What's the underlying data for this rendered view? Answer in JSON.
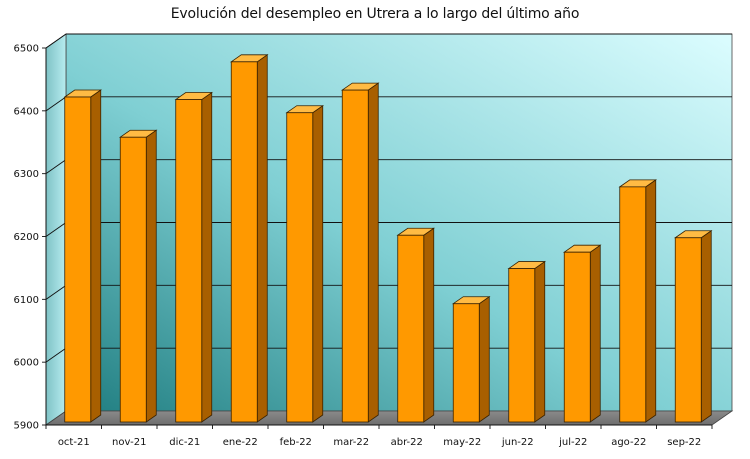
{
  "chart_data": {
    "type": "bar",
    "title": "Evolución del desempleo en Utrera a lo largo del último año",
    "xlabel": "",
    "ylabel": "",
    "categories": [
      "oct-21",
      "nov-21",
      "dic-21",
      "ene-22",
      "feb-22",
      "mar-22",
      "abr-22",
      "may-22",
      "jun-22",
      "jul-22",
      "ago-22",
      "sep-22"
    ],
    "values": [
      6422,
      6358,
      6418,
      6478,
      6397,
      6433,
      6202,
      6093,
      6149,
      6175,
      6279,
      6198
    ],
    "ylim": [
      5900,
      6500
    ],
    "yticks": [
      5900,
      6000,
      6100,
      6200,
      6300,
      6400,
      6500
    ],
    "grid": true,
    "legend": "none",
    "bar_color": "#ff9900",
    "background": "3d gradient teal to light cyan"
  }
}
